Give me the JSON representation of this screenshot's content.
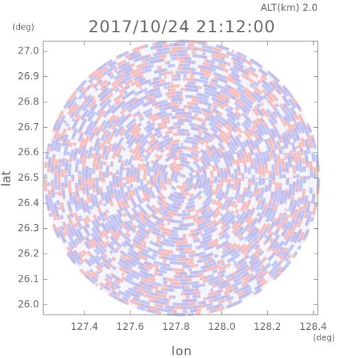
{
  "chart_data": {
    "type": "radar-field",
    "title": "2017/10/24 21:12:00",
    "annotation": "ALT(km) 2.0",
    "x_unit": "(deg)",
    "y_unit": "(deg)",
    "x_label": "lon",
    "y_label": "lat",
    "xlim": [
      127.22,
      128.42
    ],
    "xticks": [
      {
        "value": 127.4,
        "label": "127.4"
      },
      {
        "value": 127.6,
        "label": "127.6"
      },
      {
        "value": 127.8,
        "label": "127.8"
      },
      {
        "value": 128.0,
        "label": "128.0"
      },
      {
        "value": 128.2,
        "label": "128.2"
      },
      {
        "value": 128.4,
        "label": "128.4"
      }
    ],
    "ylim": [
      25.96,
      27.04
    ],
    "yticks": [
      {
        "value": 26.0,
        "label": "26.0"
      },
      26.1,
      26.2,
      26.3,
      26.4,
      26.5,
      26.6,
      26.7,
      26.8,
      26.9,
      {
        "value": 27.0,
        "label": "27.0"
      }
    ]
  }
}
